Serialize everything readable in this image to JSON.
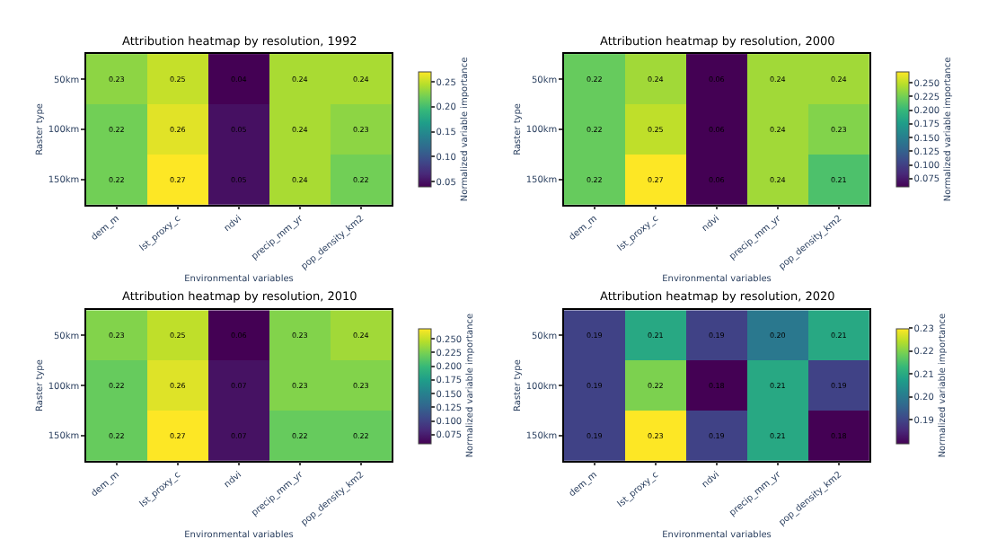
{
  "chart_data": [
    {
      "type": "heatmap",
      "title": "Attribution heatmap by resolution, 1992",
      "xlabel": "Environmental variables",
      "ylabel": "Raster type",
      "clabel": "Normalized variable importance",
      "categories": [
        "dem_m",
        "lst_proxy_c",
        "ndvi",
        "precip_mm_yr",
        "pop_density_km2"
      ],
      "y_categories": [
        "50km",
        "100km",
        "150km"
      ],
      "cells": [
        [
          0.23,
          0.25,
          0.04,
          0.24,
          0.24
        ],
        [
          0.22,
          0.26,
          0.05,
          0.24,
          0.23
        ],
        [
          0.22,
          0.27,
          0.05,
          0.24,
          0.22
        ]
      ],
      "data_labels": true,
      "clim": [
        0.04,
        0.27
      ],
      "cticks": [
        0.05,
        {
          "value": 0.1,
          "label": "0.10"
        },
        0.15,
        {
          "value": 0.2,
          "label": "0.20"
        },
        0.25
      ]
    },
    {
      "type": "heatmap",
      "title": "Attribution heatmap by resolution, 2000",
      "xlabel": "Environmental variables",
      "ylabel": "Raster type",
      "clabel": "Normalized variable importance",
      "categories": [
        "dem_m",
        "lst_proxy_c",
        "ndvi",
        "precip_mm_yr",
        "pop_density_km2"
      ],
      "y_categories": [
        "50km",
        "100km",
        "150km"
      ],
      "cells": [
        [
          0.22,
          0.24,
          0.06,
          0.24,
          0.24
        ],
        [
          0.22,
          0.25,
          0.06,
          0.24,
          0.23
        ],
        [
          0.22,
          0.27,
          0.06,
          0.24,
          0.21
        ]
      ],
      "data_labels": true,
      "clim": [
        0.06,
        0.27
      ],
      "cticks": [
        {
          "value": 0.075,
          "label": "0.075"
        },
        {
          "value": 0.1,
          "label": "0.100"
        },
        {
          "value": 0.125,
          "label": "0.125"
        },
        {
          "value": 0.15,
          "label": "0.150"
        },
        {
          "value": 0.175,
          "label": "0.175"
        },
        {
          "value": 0.2,
          "label": "0.200"
        },
        {
          "value": 0.225,
          "label": "0.225"
        },
        {
          "value": 0.25,
          "label": "0.250"
        }
      ]
    },
    {
      "type": "heatmap",
      "title": "Attribution heatmap by resolution, 2010",
      "xlabel": "Environmental variables",
      "ylabel": "Raster type",
      "clabel": "Normalized variable importance",
      "categories": [
        "dem_m",
        "lst_proxy_c",
        "ndvi",
        "precip_mm_yr",
        "pop_density_km2"
      ],
      "y_categories": [
        "50km",
        "100km",
        "150km"
      ],
      "cells": [
        [
          0.23,
          0.25,
          0.06,
          0.23,
          0.24
        ],
        [
          0.22,
          0.26,
          0.07,
          0.23,
          0.23
        ],
        [
          0.22,
          0.27,
          0.07,
          0.22,
          0.22
        ]
      ],
      "data_labels": true,
      "clim": [
        0.06,
        0.27
      ],
      "cticks": [
        {
          "value": 0.075,
          "label": "0.075"
        },
        {
          "value": 0.1,
          "label": "0.100"
        },
        {
          "value": 0.125,
          "label": "0.125"
        },
        {
          "value": 0.15,
          "label": "0.150"
        },
        {
          "value": 0.175,
          "label": "0.175"
        },
        {
          "value": 0.2,
          "label": "0.200"
        },
        {
          "value": 0.225,
          "label": "0.225"
        },
        {
          "value": 0.25,
          "label": "0.250"
        }
      ]
    },
    {
      "type": "heatmap",
      "title": "Attribution heatmap by resolution, 2020",
      "xlabel": "Environmental variables",
      "ylabel": "Raster type",
      "clabel": "Normalized variable importance",
      "categories": [
        "dem_m",
        "lst_proxy_c",
        "ndvi",
        "precip_mm_yr",
        "pop_density_km2"
      ],
      "y_categories": [
        "50km",
        "100km",
        "150km"
      ],
      "cells": [
        [
          0.19,
          0.21,
          0.19,
          0.2,
          0.21
        ],
        [
          0.19,
          0.22,
          0.18,
          0.21,
          0.19
        ],
        [
          0.19,
          0.23,
          0.19,
          0.21,
          0.18
        ]
      ],
      "cell_labels": [
        [
          "0.19",
          "0.21",
          "0.19",
          "0.20",
          "0.21"
        ],
        [
          "0.19",
          "0.22",
          "0.18",
          "0.21",
          "0.19"
        ],
        [
          "0.19",
          "0.23",
          "0.19",
          "0.21",
          "0.18"
        ]
      ],
      "clim": [
        0.18,
        0.23
      ],
      "cticks": [
        {
          "value": 0.19,
          "label": "0.19"
        },
        {
          "value": 0.2,
          "label": "0.20"
        },
        {
          "value": 0.21,
          "label": "0.21"
        },
        {
          "value": 0.22,
          "label": "0.22"
        },
        {
          "value": 0.23,
          "label": "0.23"
        }
      ]
    }
  ]
}
